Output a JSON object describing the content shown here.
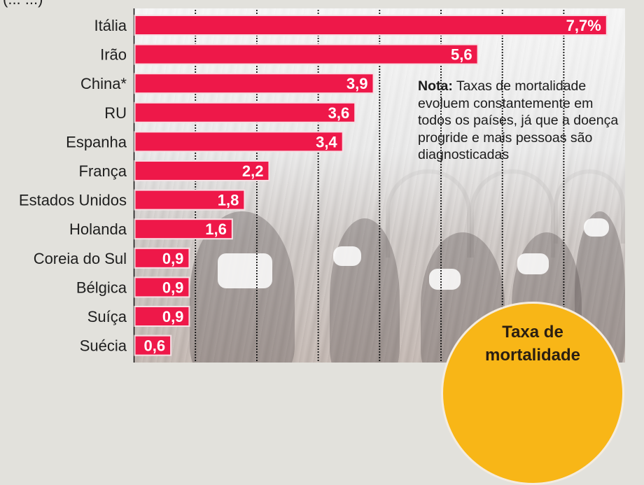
{
  "header": {
    "subtitle_cut_off": "(... ...)"
  },
  "note": {
    "label": "Nota:",
    "text": " Taxas de mortalidade evoluem constantemente em todos os países, já que a doença progride e mais pessoas são diagnosticadas"
  },
  "badge": {
    "line1": "Taxa de",
    "line2": "mortalidade"
  },
  "colors": {
    "bar": "#ee1849",
    "bar_border": "#f6dfe4",
    "label_text": "#1e1e1e",
    "value_text": "#ffffff",
    "badge": "#f8b617",
    "background": "#e2e1dc"
  },
  "chart_data": {
    "type": "bar",
    "orientation": "horizontal",
    "title": "Taxa de mortalidade",
    "unit": "%",
    "categories": [
      "Itália",
      "Irão",
      "China*",
      "RU",
      "Espanha",
      "França",
      "Estados Unidos",
      "Holanda",
      "Coreia do Sul",
      "Bélgica",
      "Suíça",
      "Suécia"
    ],
    "values": [
      7.7,
      5.6,
      3.9,
      3.6,
      3.4,
      2.2,
      1.8,
      1.6,
      0.9,
      0.9,
      0.9,
      0.6
    ],
    "value_labels": [
      "7,7%",
      "5,6",
      "3,9",
      "3,6",
      "3,4",
      "2,2",
      "1,8",
      "1,6",
      "0,9",
      "0,9",
      "0,9",
      "0,6"
    ],
    "xlim": [
      0,
      8
    ],
    "grid_values": [
      1,
      2,
      3,
      4,
      5,
      6,
      7
    ],
    "grid": true,
    "grid_style": "dotted vertical",
    "xlabel": "",
    "ylabel": ""
  }
}
